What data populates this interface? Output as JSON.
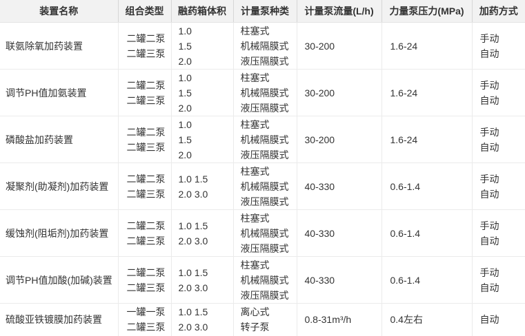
{
  "table": {
    "columns": [
      "装置名称",
      "组合类型",
      "融药箱体积",
      "计量泵种类",
      "计量泵流量(L/h)",
      "力量泵压力(MPa)",
      "加药方式"
    ],
    "rows": [
      {
        "cells": [
          [
            "联氨除氧加药装置"
          ],
          [
            "二罐二泵",
            "二罐三泵"
          ],
          [
            "1.0",
            "1.5",
            "2.0"
          ],
          [
            "柱塞式",
            "机械隔膜式",
            "液压隔膜式"
          ],
          [
            "30-200"
          ],
          [
            "1.6-24"
          ],
          [
            "手动",
            "自动"
          ]
        ]
      },
      {
        "cells": [
          [
            "调节PH值加氨装置"
          ],
          [
            "二罐二泵",
            "二罐三泵"
          ],
          [
            "1.0",
            "1.5",
            "2.0"
          ],
          [
            "柱塞式",
            "机械隔膜式",
            "液压隔膜式"
          ],
          [
            "30-200"
          ],
          [
            "1.6-24"
          ],
          [
            "手动",
            "自动"
          ]
        ]
      },
      {
        "cells": [
          [
            "磷酸盐加药装置"
          ],
          [
            "二罐二泵",
            "二罐三泵"
          ],
          [
            "1.0",
            "1.5",
            "2.0"
          ],
          [
            "柱塞式",
            "机械隔膜式",
            "液压隔膜式"
          ],
          [
            "30-200"
          ],
          [
            "1.6-24"
          ],
          [
            "手动",
            "自动"
          ]
        ]
      },
      {
        "cells": [
          [
            "凝聚剂(助凝剂)加药装置"
          ],
          [
            "二罐二泵",
            "二罐三泵"
          ],
          [
            "1.0 1.5",
            "2.0 3.0"
          ],
          [
            "柱塞式",
            "机械隔膜式",
            "液压隔膜式"
          ],
          [
            "40-330"
          ],
          [
            "0.6-1.4"
          ],
          [
            "手动",
            "自动"
          ]
        ]
      },
      {
        "cells": [
          [
            "缓蚀剂(阻垢剂)加药装置"
          ],
          [
            "二罐二泵",
            "二罐三泵"
          ],
          [
            "1.0 1.5",
            "2.0 3.0"
          ],
          [
            "柱塞式",
            "机械隔膜式",
            "液压隔膜式"
          ],
          [
            "40-330"
          ],
          [
            "0.6-1.4"
          ],
          [
            "手动",
            "自动"
          ]
        ]
      },
      {
        "cells": [
          [
            "调节PH值加酸(加碱)装置"
          ],
          [
            "二罐二泵",
            "二罐三泵"
          ],
          [
            "1.0 1.5",
            "2.0 3.0"
          ],
          [
            "柱塞式",
            "机械隔膜式",
            "液压隔膜式"
          ],
          [
            "40-330"
          ],
          [
            "0.6-1.4"
          ],
          [
            "手动",
            "自动"
          ]
        ]
      },
      {
        "cells": [
          [
            "硫酸亚铁镀膜加药装置"
          ],
          [
            "一罐一泵",
            "二罐三泵"
          ],
          [
            "1.0 1.5",
            "2.0 3.0"
          ],
          [
            "离心式",
            "转子泵"
          ],
          [
            "0.8-31m³/h"
          ],
          [
            "0.4左右"
          ],
          [
            "自动"
          ]
        ]
      }
    ]
  },
  "colors": {
    "header_bg": "#f2f2f2",
    "body_bg": "#ffffff",
    "body_border": "#ebebeb",
    "header_divider": "#d6d6d6",
    "text": "#333333"
  }
}
